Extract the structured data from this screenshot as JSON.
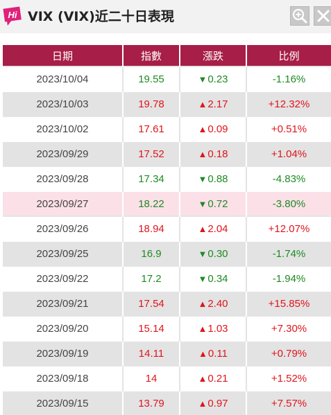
{
  "header": {
    "title": "VIX (VIX)近二十日表現",
    "logo_text": "Hi"
  },
  "colors": {
    "header_bg": "#a71e48",
    "up": "#e0141c",
    "down": "#1e8a22",
    "highlight_row": "#fbe0e8"
  },
  "table": {
    "columns": [
      "日期",
      "指數",
      "漲跌",
      "比例"
    ],
    "rows": [
      {
        "date": "2023/10/04",
        "index": "19.55",
        "change": "0.23",
        "ratio": "-1.16%",
        "dir": "down"
      },
      {
        "date": "2023/10/03",
        "index": "19.78",
        "change": "2.17",
        "ratio": "+12.32%",
        "dir": "up"
      },
      {
        "date": "2023/10/02",
        "index": "17.61",
        "change": "0.09",
        "ratio": "+0.51%",
        "dir": "up"
      },
      {
        "date": "2023/09/29",
        "index": "17.52",
        "change": "0.18",
        "ratio": "+1.04%",
        "dir": "up"
      },
      {
        "date": "2023/09/28",
        "index": "17.34",
        "change": "0.88",
        "ratio": "-4.83%",
        "dir": "down"
      },
      {
        "date": "2023/09/27",
        "index": "18.22",
        "change": "0.72",
        "ratio": "-3.80%",
        "dir": "down",
        "highlight": true
      },
      {
        "date": "2023/09/26",
        "index": "18.94",
        "change": "2.04",
        "ratio": "+12.07%",
        "dir": "up"
      },
      {
        "date": "2023/09/25",
        "index": "16.9",
        "change": "0.30",
        "ratio": "-1.74%",
        "dir": "down"
      },
      {
        "date": "2023/09/22",
        "index": "17.2",
        "change": "0.34",
        "ratio": "-1.94%",
        "dir": "down"
      },
      {
        "date": "2023/09/21",
        "index": "17.54",
        "change": "2.40",
        "ratio": "+15.85%",
        "dir": "up"
      },
      {
        "date": "2023/09/20",
        "index": "15.14",
        "change": "1.03",
        "ratio": "+7.30%",
        "dir": "up"
      },
      {
        "date": "2023/09/19",
        "index": "14.11",
        "change": "0.11",
        "ratio": "+0.79%",
        "dir": "up"
      },
      {
        "date": "2023/09/18",
        "index": "14",
        "change": "0.21",
        "ratio": "+1.52%",
        "dir": "up"
      },
      {
        "date": "2023/09/15",
        "index": "13.79",
        "change": "0.97",
        "ratio": "+7.57%",
        "dir": "up"
      }
    ]
  }
}
